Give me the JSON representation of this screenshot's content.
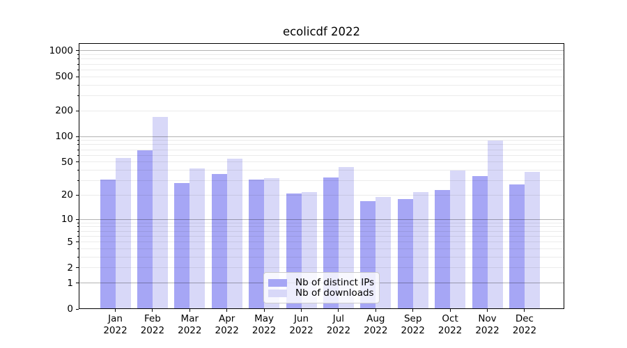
{
  "chart_data": {
    "type": "bar",
    "title": "ecolicdf 2022",
    "categories": [
      "Jan",
      "Feb",
      "Mar",
      "Apr",
      "May",
      "Jun",
      "Jul",
      "Aug",
      "Sep",
      "Oct",
      "Nov",
      "Dec"
    ],
    "category_year": "2022",
    "series": [
      {
        "name": "Nb of distinct IPs",
        "color": "#a6a6f5",
        "values": [
          31,
          69,
          28,
          36,
          31,
          21,
          33,
          17,
          18,
          23,
          34,
          27
        ]
      },
      {
        "name": "Nb of downloads",
        "color": "#d8d8f8",
        "values": [
          56,
          169,
          42,
          55,
          32,
          22,
          44,
          19,
          22,
          40,
          90,
          38
        ]
      }
    ],
    "y_axis": {
      "scale": "symlog (position proportional to log10(1+value))",
      "tick_labels": [
        0,
        1,
        2,
        5,
        10,
        20,
        50,
        100,
        200,
        500,
        1000
      ],
      "major_gridlines": [
        1,
        10,
        100,
        1000
      ],
      "minor_gridline_bases": [
        1,
        10,
        100
      ],
      "range": [
        0,
        1220
      ]
    },
    "x_axis": {
      "ticks_per_category": true
    },
    "grid": "horizontal major and minor, drawn over bars",
    "legend": {
      "position": "lower center inside plot"
    },
    "colors": {
      "major_grid": "rgba(0,0,0,0.30)",
      "minor_grid": "rgba(0,0,0,0.08)",
      "axis": "#000000",
      "background": "#ffffff",
      "legend_border": "#cccccc"
    }
  }
}
